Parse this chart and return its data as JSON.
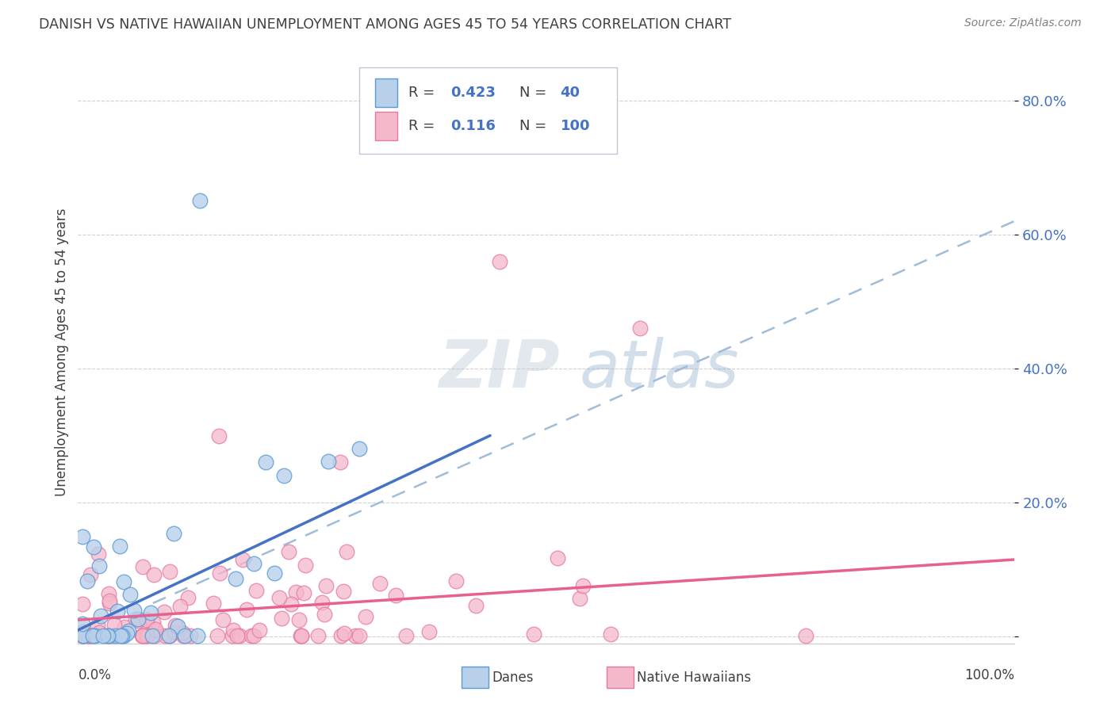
{
  "title": "DANISH VS NATIVE HAWAIIAN UNEMPLOYMENT AMONG AGES 45 TO 54 YEARS CORRELATION CHART",
  "source": "Source: ZipAtlas.com",
  "ylabel": "Unemployment Among Ages 45 to 54 years",
  "y_tick_vals": [
    0.0,
    0.2,
    0.4,
    0.6,
    0.8
  ],
  "y_tick_labels": [
    "",
    "20.0%",
    "40.0%",
    "60.0%",
    "80.0%"
  ],
  "xlim": [
    0.0,
    1.0
  ],
  "ylim": [
    -0.01,
    0.86
  ],
  "danish_R": "0.423",
  "danish_N": "40",
  "hawaiian_R": "0.116",
  "hawaiian_N": "100",
  "legend_label_danish": "Danes",
  "legend_label_hawaiian": "Native Hawaiians",
  "danish_fill_color": "#b8d0ea",
  "danish_edge_color": "#5b9bd5",
  "danish_line_color": "#4472c4",
  "hawaiian_fill_color": "#f4b8cb",
  "hawaiian_edge_color": "#e878a0",
  "hawaiian_line_color": "#e86090",
  "dash_line_color": "#a0bcd8",
  "background_color": "#ffffff",
  "title_color": "#404040",
  "source_color": "#808080",
  "r_n_color": "#4472c4",
  "label_color": "#404040",
  "grid_color": "#d0d0d0",
  "tick_color": "#4472c4",
  "legend_edge_color": "#c0c8d8",
  "danish_trend_x": [
    0.0,
    0.44
  ],
  "danish_trend_y": [
    0.01,
    0.3
  ],
  "hawaiian_trend_x": [
    0.0,
    1.0
  ],
  "hawaiian_trend_y": [
    0.025,
    0.115
  ],
  "dash_trend_x": [
    0.08,
    1.0
  ],
  "dash_trend_y": [
    0.05,
    0.62
  ]
}
